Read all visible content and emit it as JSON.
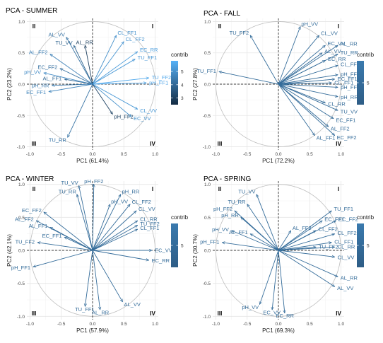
{
  "chart_data": [
    {
      "type": "scatter",
      "title": "PCA - SUMMER",
      "xlabel": "PC1 (61.4%)",
      "ylabel": "PC2 (23.2%)",
      "xlim": [
        -1.05,
        1.05
      ],
      "ylim": [
        -1.05,
        1.05
      ],
      "xticks": [
        "-1.0",
        "-0.5",
        "0.0",
        "0.5",
        "1.0"
      ],
      "yticks": [
        "1.0",
        "0.5",
        "0.0",
        "-0.5",
        "-1.0"
      ],
      "quadrants": [
        "I",
        "II",
        "III",
        "IV"
      ],
      "legend": {
        "title": "contrib",
        "ticks": [
          "5",
          "4",
          "3"
        ],
        "range": [
          2.5,
          5.8
        ],
        "color_low": "#132B43",
        "color_high": "#56B1F7"
      },
      "variables": [
        {
          "label": "AL_VV",
          "x": -0.42,
          "y": 0.75,
          "contrib": 4.3
        },
        {
          "label": "TU_VV",
          "x": -0.3,
          "y": 0.62,
          "contrib": 3.9
        },
        {
          "label": "AL_RR",
          "x": -0.12,
          "y": 0.62,
          "contrib": 3.0
        },
        {
          "label": "CL_FF1",
          "x": 0.38,
          "y": 0.78,
          "contrib": 5.0
        },
        {
          "label": "CL_FF2",
          "x": 0.5,
          "y": 0.68,
          "contrib": 5.1
        },
        {
          "label": "EC_RR",
          "x": 0.72,
          "y": 0.52,
          "contrib": 5.3
        },
        {
          "label": "TU_FF1",
          "x": 0.68,
          "y": 0.4,
          "contrib": 5.2
        },
        {
          "label": "AL_FF2",
          "x": -0.68,
          "y": 0.48,
          "contrib": 4.6
        },
        {
          "label": "EC_FF2",
          "x": -0.52,
          "y": 0.25,
          "contrib": 4.2
        },
        {
          "label": "pH_VV",
          "x": -0.78,
          "y": 0.18,
          "contrib": 4.9
        },
        {
          "label": "AL_FF1",
          "x": -0.45,
          "y": 0.08,
          "contrib": 4.0
        },
        {
          "label": "pH_RR",
          "x": -0.65,
          "y": -0.02,
          "contrib": 4.5
        },
        {
          "label": "EC_FF1",
          "x": -0.7,
          "y": -0.12,
          "contrib": 4.7
        },
        {
          "label": "TU_FF2",
          "x": 0.9,
          "y": 0.1,
          "contrib": 5.6
        },
        {
          "label": "pH_FF1",
          "x": 0.86,
          "y": 0.02,
          "contrib": 5.5
        },
        {
          "label": "CL_VV",
          "x": 0.72,
          "y": -0.4,
          "contrib": 5.2
        },
        {
          "label": "EC_VV",
          "x": 0.62,
          "y": -0.52,
          "contrib": 5.0
        },
        {
          "label": "pH_FF2",
          "x": 0.32,
          "y": -0.48,
          "contrib": 3.1
        },
        {
          "label": "TU_RR",
          "x": -0.4,
          "y": -0.85,
          "contrib": 4.3
        }
      ]
    },
    {
      "type": "scatter",
      "title": "PCA - FALL",
      "xlabel": "PC1 (72.2%)",
      "ylabel": "PC2 (27.8%)",
      "xlim": [
        -1.05,
        1.05
      ],
      "ylim": [
        -1.05,
        1.05
      ],
      "xticks": [
        "-1.0",
        "-0.5",
        "0.0",
        "0.5",
        "1.0"
      ],
      "yticks": [
        "1.0",
        "0.5",
        "0.0",
        "-0.5",
        "-1.0"
      ],
      "quadrants": [
        "I",
        "II",
        "III",
        "IV"
      ],
      "legend": {
        "title": "contrib",
        "ticks": [
          "5"
        ],
        "range": [
          4.4,
          5.6
        ],
        "color_low": "#2E5D86",
        "color_high": "#3A7AAE"
      },
      "variables": [
        {
          "label": "pH_VV",
          "x": 0.35,
          "y": 0.92,
          "contrib": 5.0
        },
        {
          "label": "TU_FF2",
          "x": -0.45,
          "y": 0.78,
          "contrib": 5.0
        },
        {
          "label": "CL_VV",
          "x": 0.65,
          "y": 0.78,
          "contrib": 5.0
        },
        {
          "label": "EC_VV",
          "x": 0.75,
          "y": 0.62,
          "contrib": 5.0
        },
        {
          "label": "AL_RR",
          "x": 0.95,
          "y": 0.62,
          "contrib": 5.0
        },
        {
          "label": "AL_VV",
          "x": 0.7,
          "y": 0.5,
          "contrib": 5.0
        },
        {
          "label": "TU_RR",
          "x": 0.95,
          "y": 0.48,
          "contrib": 5.0
        },
        {
          "label": "EC_RR",
          "x": 0.75,
          "y": 0.38,
          "contrib": 5.0
        },
        {
          "label": "CL_FF2",
          "x": 0.95,
          "y": 0.3,
          "contrib": 5.0
        },
        {
          "label": "TU_FF1",
          "x": -0.95,
          "y": 0.2,
          "contrib": 5.0
        },
        {
          "label": "pH_FF1",
          "x": 0.95,
          "y": 0.15,
          "contrib": 5.0
        },
        {
          "label": "EC_FF1",
          "x": 0.9,
          "y": 0.08,
          "contrib": 5.0
        },
        {
          "label": "CL_FF1",
          "x": 0.85,
          "y": 0.02,
          "contrib": 5.0
        },
        {
          "label": "pH_FF2",
          "x": 0.95,
          "y": -0.05,
          "contrib": 5.0
        },
        {
          "label": "pH_RR",
          "x": 0.95,
          "y": -0.2,
          "contrib": 5.0
        },
        {
          "label": "CL_RR",
          "x": 0.75,
          "y": -0.3,
          "contrib": 5.0
        },
        {
          "label": "TU_VV",
          "x": 0.95,
          "y": -0.42,
          "contrib": 5.0
        },
        {
          "label": "EC_FF1",
          "x": 0.88,
          "y": -0.55,
          "contrib": 5.0
        },
        {
          "label": "AL_FF2",
          "x": 0.8,
          "y": -0.68,
          "contrib": 5.0
        },
        {
          "label": "AL_FF1",
          "x": 0.58,
          "y": -0.82,
          "contrib": 5.0
        },
        {
          "label": "EC_FF2",
          "x": 0.9,
          "y": -0.82,
          "contrib": 5.0
        }
      ]
    },
    {
      "type": "scatter",
      "title": "PCA - WINTER",
      "xlabel": "PC1 (57.9%)",
      "ylabel": "PC2 (42.1%)",
      "xlim": [
        -1.05,
        1.05
      ],
      "ylim": [
        -1.05,
        1.05
      ],
      "xticks": [
        "-1.0",
        "-0.5",
        "0.0",
        "0.5",
        "1.0"
      ],
      "yticks": [
        "1.0",
        "0.5",
        "0.0",
        "-0.5",
        "-1.0"
      ],
      "quadrants": [
        "I",
        "II",
        "III",
        "IV"
      ],
      "legend": {
        "title": "contrib",
        "ticks": [
          "5"
        ],
        "range": [
          4.4,
          5.6
        ],
        "color_low": "#2E5D86",
        "color_high": "#3A7AAE"
      },
      "variables": [
        {
          "label": "TU_VV",
          "x": -0.22,
          "y": 0.98,
          "contrib": 5.0
        },
        {
          "label": "pH_FF2",
          "x": 0.02,
          "y": 1.0,
          "contrib": 5.0
        },
        {
          "label": "TU_RR",
          "x": -0.25,
          "y": 0.85,
          "contrib": 5.0
        },
        {
          "label": "pH_RR",
          "x": 0.45,
          "y": 0.85,
          "contrib": 5.0
        },
        {
          "label": "pH_VV",
          "x": 0.28,
          "y": 0.7,
          "contrib": 5.0
        },
        {
          "label": "CL_FF2",
          "x": 0.6,
          "y": 0.7,
          "contrib": 5.0
        },
        {
          "label": "CL_VV",
          "x": 0.7,
          "y": 0.6,
          "contrib": 5.0
        },
        {
          "label": "EC_FF2",
          "x": -0.78,
          "y": 0.58,
          "contrib": 5.0
        },
        {
          "label": "CL_RR",
          "x": 0.72,
          "y": 0.45,
          "contrib": 5.0
        },
        {
          "label": "AL_FF2",
          "x": -0.9,
          "y": 0.45,
          "contrib": 5.0
        },
        {
          "label": "TU_FF2",
          "x": 0.72,
          "y": 0.38,
          "contrib": 5.0
        },
        {
          "label": "AL_FF1",
          "x": -0.68,
          "y": 0.35,
          "contrib": 5.0
        },
        {
          "label": "CL_FF1",
          "x": 0.72,
          "y": 0.32,
          "contrib": 5.0
        },
        {
          "label": "EC_FF1",
          "x": -0.45,
          "y": 0.2,
          "contrib": 5.0
        },
        {
          "label": "TU_FF2",
          "x": -0.88,
          "y": 0.12,
          "contrib": 5.0
        },
        {
          "label": "EC_VV",
          "x": 0.95,
          "y": 0.0,
          "contrib": 5.0
        },
        {
          "label": "EC_RR",
          "x": 0.9,
          "y": -0.15,
          "contrib": 5.0
        },
        {
          "label": "pH_FF1",
          "x": -0.95,
          "y": -0.25,
          "contrib": 5.0
        },
        {
          "label": "AL_VV",
          "x": 0.48,
          "y": -0.78,
          "contrib": 5.0
        },
        {
          "label": "TU_FF1",
          "x": -0.12,
          "y": -0.85,
          "contrib": 5.0
        },
        {
          "label": "AL_RR",
          "x": 0.12,
          "y": -0.9,
          "contrib": 5.0
        }
      ]
    },
    {
      "type": "scatter",
      "title": "PCA - SPRING",
      "xlabel": "PC1 (69.3%)",
      "ylabel": "PC2 (30.7%)",
      "xlim": [
        -1.05,
        1.05
      ],
      "ylim": [
        -1.05,
        1.05
      ],
      "xticks": [
        "-1.0",
        "-0.5",
        "0.0",
        "0.5",
        "1.0"
      ],
      "yticks": [
        "1.0",
        "0.5",
        "0.0",
        "-0.5",
        "-1.0"
      ],
      "quadrants": [
        "I",
        "II",
        "III",
        "IV"
      ],
      "legend": {
        "title": "contrib",
        "ticks": [
          "5"
        ],
        "range": [
          4.4,
          5.6
        ],
        "color_low": "#2E5D86",
        "color_high": "#3A7AAE"
      },
      "variables": [
        {
          "label": "TU_VV",
          "x": -0.35,
          "y": 0.85,
          "contrib": 5.0
        },
        {
          "label": "TU_RR",
          "x": -0.5,
          "y": 0.7,
          "contrib": 5.0
        },
        {
          "label": "pH_FF2",
          "x": -0.7,
          "y": 0.6,
          "contrib": 5.0
        },
        {
          "label": "pH_RR",
          "x": -0.6,
          "y": 0.5,
          "contrib": 5.0
        },
        {
          "label": "TU_FF1",
          "x": 0.85,
          "y": 0.6,
          "contrib": 5.0
        },
        {
          "label": "EC_FF1",
          "x": 0.7,
          "y": 0.45,
          "contrib": 5.0
        },
        {
          "label": "EC_FF2",
          "x": 0.92,
          "y": 0.45,
          "contrib": 5.0
        },
        {
          "label": "pH_VV",
          "x": -0.75,
          "y": 0.3,
          "contrib": 5.0
        },
        {
          "label": "AL_FF2",
          "x": 0.2,
          "y": 0.3,
          "contrib": 5.0
        },
        {
          "label": "CL_FF2",
          "x": 0.6,
          "y": 0.3,
          "contrib": 5.0
        },
        {
          "label": "AL_FF1",
          "x": -0.45,
          "y": 0.25,
          "contrib": 5.0
        },
        {
          "label": "CL_FF2",
          "x": 0.9,
          "y": 0.25,
          "contrib": 5.0
        },
        {
          "label": "pH_FF1",
          "x": -0.9,
          "y": 0.12,
          "contrib": 5.0
        },
        {
          "label": "CL_FF1",
          "x": 0.85,
          "y": 0.12,
          "contrib": 5.0
        },
        {
          "label": "TU_FF2",
          "x": 0.6,
          "y": 0.05,
          "contrib": 5.0
        },
        {
          "label": "CL_RR",
          "x": 0.9,
          "y": 0.05,
          "contrib": 5.0
        },
        {
          "label": "CL_VV",
          "x": 0.9,
          "y": -0.1,
          "contrib": 5.0
        },
        {
          "label": "AL_RR",
          "x": 0.95,
          "y": -0.4,
          "contrib": 5.0
        },
        {
          "label": "AL_VV",
          "x": 0.9,
          "y": -0.55,
          "contrib": 5.0
        },
        {
          "label": "pH_VV",
          "x": -0.3,
          "y": -0.82,
          "contrib": 5.0
        },
        {
          "label": "EC_VV",
          "x": -0.1,
          "y": -0.9,
          "contrib": 5.0
        },
        {
          "label": "EC_RR",
          "x": 0.1,
          "y": -0.95,
          "contrib": 5.0
        }
      ]
    }
  ]
}
